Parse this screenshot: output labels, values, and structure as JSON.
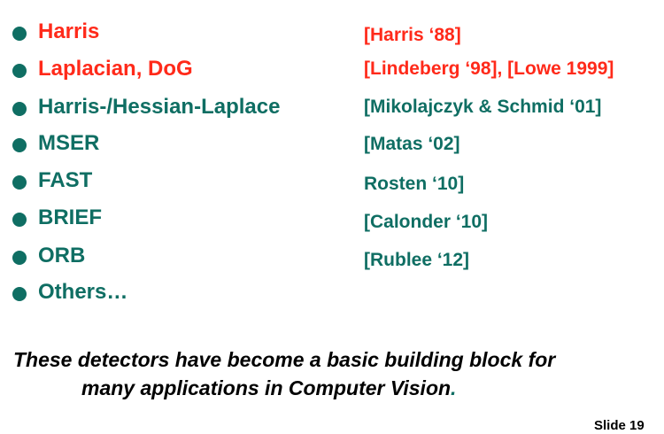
{
  "colors": {
    "highlight": "#ff2a1a",
    "primary": "#0f6e63",
    "text": "#000000",
    "background": "#ffffff"
  },
  "detectors": [
    {
      "name": "Harris",
      "ref": "[Harris ‘88]",
      "color": "red"
    },
    {
      "name": "Laplacian, DoG",
      "ref": "[Lindeberg ‘98], [Lowe 1999]",
      "color": "red"
    },
    {
      "name": "Harris-/Hessian-Laplace",
      "ref": "[Mikolajczyk & Schmid ‘01]",
      "color": "teal"
    },
    {
      "name": "MSER",
      "ref": "[Matas ‘02]",
      "color": "teal"
    },
    {
      "name": "FAST",
      "ref": "Rosten ‘10]",
      "color": "teal"
    },
    {
      "name": "BRIEF",
      "ref": "[Calonder ‘10]",
      "color": "teal"
    },
    {
      "name": "ORB",
      "ref": "[Rublee ‘12]",
      "color": "teal"
    },
    {
      "name": "Others…",
      "ref": "",
      "color": "teal"
    }
  ],
  "summary": {
    "line1": "These detectors have become a basic building block for",
    "line2": "many applications in Computer Vision",
    "line2_end": "."
  },
  "slide_number": "Slide 19"
}
